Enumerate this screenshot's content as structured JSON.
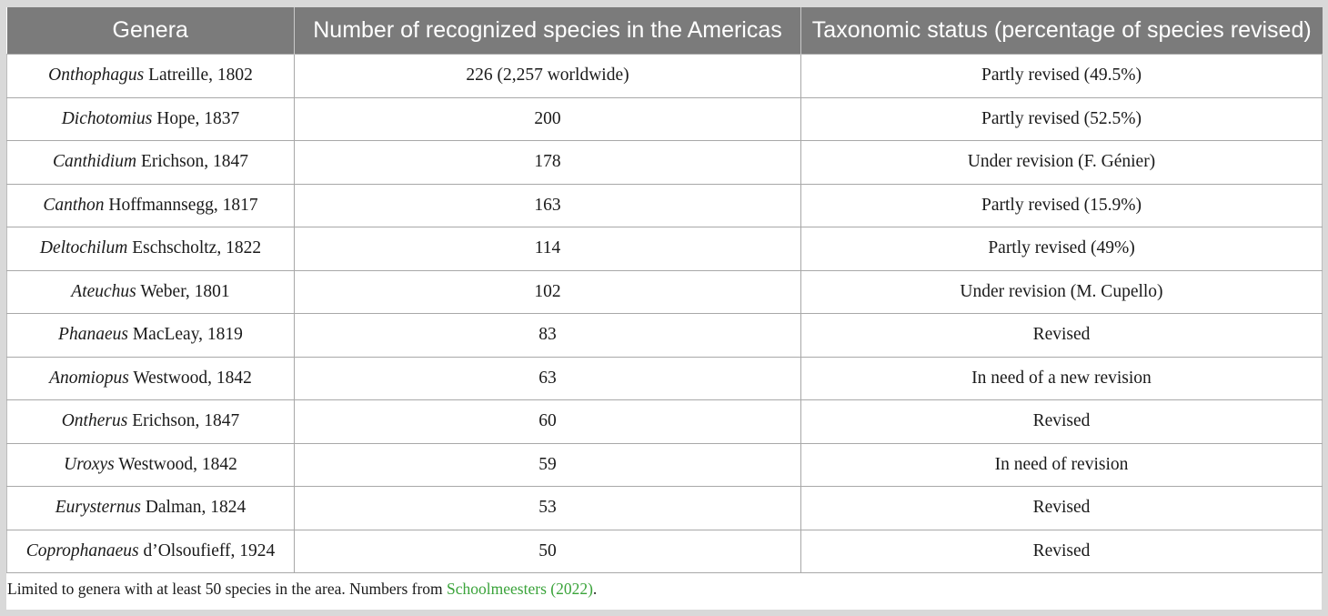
{
  "table": {
    "headers": [
      "Genera",
      "Number of recognized species in the Americas",
      "Taxonomic status (percentage of species revised)"
    ],
    "rows": [
      {
        "genus": "Onthophagus",
        "authority": "Latreille, 1802",
        "species": "226 (2,257 worldwide)",
        "status": "Partly revised (49.5%)"
      },
      {
        "genus": "Dichotomius",
        "authority": "Hope, 1837",
        "species": "200",
        "status": "Partly revised (52.5%)"
      },
      {
        "genus": "Canthidium",
        "authority": "Erichson, 1847",
        "species": "178",
        "status": "Under revision (F. Génier)"
      },
      {
        "genus": "Canthon",
        "authority": "Hoffmannsegg, 1817",
        "species": "163",
        "status": "Partly revised (15.9%)"
      },
      {
        "genus": "Deltochilum",
        "authority": "Eschscholtz, 1822",
        "species": "114",
        "status": "Partly revised (49%)"
      },
      {
        "genus": "Ateuchus",
        "authority": "Weber, 1801",
        "species": "102",
        "status": "Under revision (M. Cupello)"
      },
      {
        "genus": "Phanaeus",
        "authority": "MacLeay, 1819",
        "species": "83",
        "status": "Revised"
      },
      {
        "genus": "Anomiopus",
        "authority": "Westwood, 1842",
        "species": "63",
        "status": "In need of a new revision"
      },
      {
        "genus": "Ontherus",
        "authority": "Erichson, 1847",
        "species": "60",
        "status": "Revised"
      },
      {
        "genus": "Uroxys",
        "authority": "Westwood, 1842",
        "species": "59",
        "status": "In need of revision"
      },
      {
        "genus": "Eurysternus",
        "authority": "Dalman, 1824",
        "species": "53",
        "status": "Revised"
      },
      {
        "genus": "Coprophanaeus",
        "authority": "d’Olsoufieff, 1924",
        "species": "50",
        "status": "Revised"
      }
    ]
  },
  "footnote": {
    "text_before": "Limited to genera with at least 50 species in the area. Numbers from ",
    "reference": "Schoolmeesters (2022)",
    "text_after": "."
  },
  "colors": {
    "header_bg": "#7b7b7b",
    "header_text": "#ffffff",
    "reference_link": "#3aa33a"
  }
}
